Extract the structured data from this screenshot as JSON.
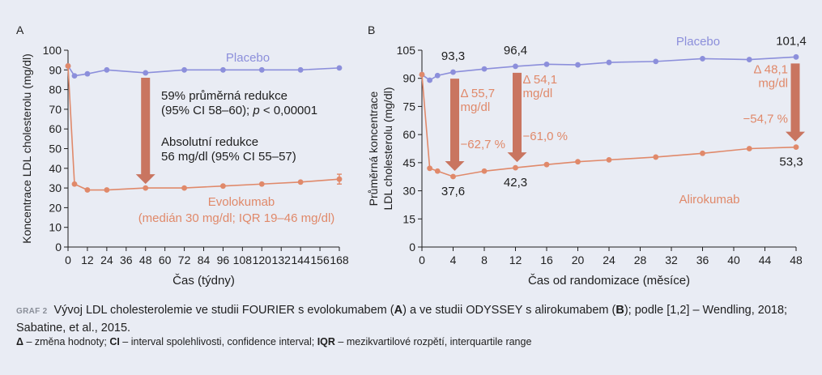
{
  "chart_data": [
    {
      "panel": "A",
      "type": "line",
      "xlabel": "Čas (týdny)",
      "ylabel": "Koncentrace LDL cholesterolu (mg/dl)",
      "xlim": [
        0,
        168
      ],
      "ylim": [
        0,
        100
      ],
      "xticks": [
        0,
        12,
        24,
        36,
        48,
        60,
        72,
        84,
        96,
        108,
        120,
        132,
        144,
        156,
        168
      ],
      "yticks": [
        0,
        10,
        20,
        30,
        40,
        50,
        60,
        70,
        80,
        90,
        100
      ],
      "series": [
        {
          "name": "Placebo",
          "color": "#8c8fdb",
          "x": [
            0,
            4,
            12,
            24,
            48,
            72,
            96,
            120,
            144,
            168
          ],
          "y": [
            92,
            87,
            88,
            90,
            88.5,
            90,
            90,
            90,
            90,
            91
          ]
        },
        {
          "name": "Evolokumab",
          "color": "#e0896a",
          "x": [
            0,
            4,
            12,
            24,
            48,
            72,
            96,
            120,
            144,
            168
          ],
          "y": [
            92,
            32,
            29,
            29,
            30,
            30,
            31,
            32,
            33,
            34.5
          ]
        }
      ],
      "series_labels": {
        "placebo": "Placebo",
        "active": "Evolokumab",
        "active_note": "(medián 30 mg/dl; IQR 19–46 mg/dl)"
      },
      "arrow": {
        "x": 48,
        "y_from": 88.5,
        "y_to": 30
      },
      "annotations": {
        "line1": "59% průměrná redukce",
        "line2_prefix": "(95% CI 58–60); ",
        "line2_p": "p",
        "line2_suffix": " < 0,00001",
        "line3": "Absolutní redukce",
        "line4": "56 mg/dl (95% CI 55–57)"
      }
    },
    {
      "panel": "B",
      "type": "line",
      "xlabel": "Čas od randomizace (měsíce)",
      "ylabel_line1": "Průměrná koncentrace",
      "ylabel_line2": "LDL cholesterolu (mg/dl)",
      "xlim": [
        0,
        48
      ],
      "ylim": [
        0,
        105
      ],
      "xticks": [
        0,
        4,
        8,
        12,
        16,
        20,
        24,
        28,
        32,
        36,
        40,
        44,
        48
      ],
      "yticks": [
        0,
        15,
        30,
        45,
        60,
        75,
        90,
        105
      ],
      "series": [
        {
          "name": "Placebo",
          "color": "#8c8fdb",
          "x": [
            0,
            1,
            2,
            4,
            8,
            12,
            16,
            20,
            24,
            30,
            36,
            42,
            48
          ],
          "y": [
            92,
            89,
            91.5,
            93.3,
            95,
            96.4,
            97.5,
            97.2,
            98.5,
            99,
            100.5,
            100,
            101.4
          ]
        },
        {
          "name": "Alirokumab",
          "color": "#e0896a",
          "x": [
            0,
            1,
            2,
            4,
            8,
            12,
            16,
            20,
            24,
            30,
            36,
            42,
            48
          ],
          "y": [
            92,
            42,
            40.5,
            37.6,
            40.5,
            42.3,
            44,
            45.5,
            46.5,
            48,
            50,
            52.5,
            53.3
          ]
        }
      ],
      "series_labels": {
        "placebo": "Placebo",
        "active": "Alirokumab"
      },
      "value_labels": [
        {
          "text": "93,3",
          "x": 4,
          "y": 93.3,
          "pos": "above"
        },
        {
          "text": "96,4",
          "x": 12,
          "y": 96.4,
          "pos": "above"
        },
        {
          "text": "101,4",
          "x": 48,
          "y": 101.4,
          "pos": "above"
        },
        {
          "text": "37,6",
          "x": 4,
          "y": 37.6,
          "pos": "below"
        },
        {
          "text": "42,3",
          "x": 12,
          "y": 42.3,
          "pos": "below"
        },
        {
          "text": "53,3",
          "x": 48,
          "y": 53.3,
          "pos": "below"
        }
      ],
      "arrows": [
        {
          "x": 4,
          "y_from": 93.3,
          "y_to": 37.6,
          "delta_line1": "Δ 55,7",
          "delta_line2": "mg/dl",
          "pct": "−62,7 %"
        },
        {
          "x": 12,
          "y_from": 96.4,
          "y_to": 42.3,
          "delta_line1": "Δ 54,1",
          "delta_line2": "mg/dl",
          "pct": "−61,0 %"
        },
        {
          "x": 48,
          "y_from": 101.4,
          "y_to": 53.3,
          "delta_line1": "Δ 48,1",
          "delta_line2": "mg/dl",
          "pct": "−54,7 %"
        }
      ]
    }
  ],
  "caption": {
    "tag": "GRAF 2",
    "part1": "Vývoj LDL cholesterolemie ve studii FOURIER s evolokumabem (",
    "a": "A",
    "part2": ") a ve studii ODYSSEY s alirokumabem (",
    "b": "B",
    "part3": "); podle [1,2] – Wendling, 2018; Sabatine, et al., 2015."
  },
  "footnote": {
    "delta_sym": "Δ",
    "delta_text": " – změna hodnoty; ",
    "ci_sym": "CI",
    "ci_text": " – interval spolehlivosti, confidence interval; ",
    "iqr_sym": "IQR",
    "iqr_text": " – mezikvartilové rozpětí, interquartile range"
  },
  "colors": {
    "placebo": "#8c8fdb",
    "active": "#e0896a",
    "arrow": "#c97560",
    "axis": "#1e1e1e",
    "background": "#e9ecf4"
  }
}
